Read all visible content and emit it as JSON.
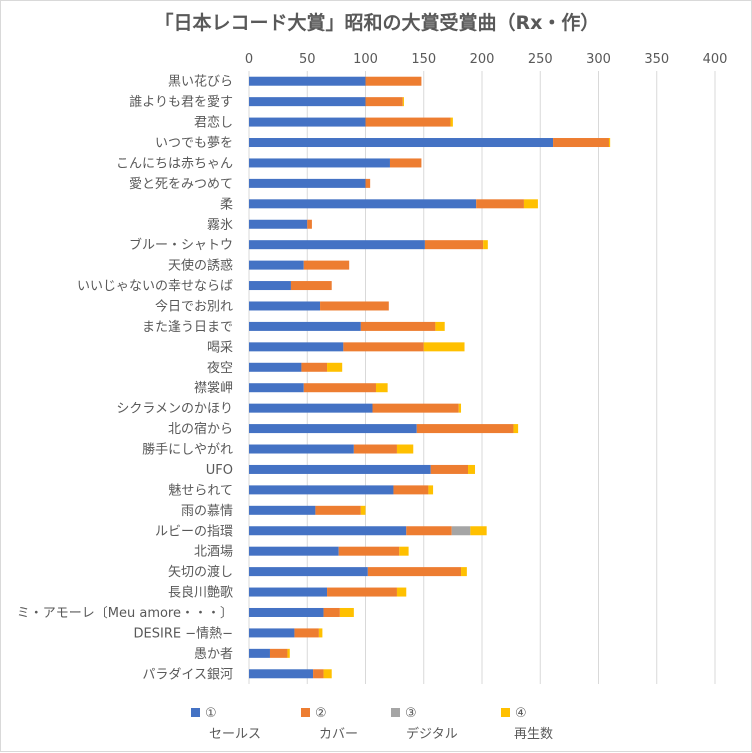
{
  "chart_data": {
    "type": "bar",
    "orientation": "horizontal",
    "stacked": true,
    "title": "「日本レコード大賞」昭和の大賞受賞曲（Rx・作）",
    "xlabel": "",
    "ylabel": "",
    "xlim": [
      0,
      400
    ],
    "xticks": [
      0,
      50,
      100,
      150,
      200,
      250,
      300,
      350,
      400
    ],
    "grid": true,
    "legend_position": "bottom",
    "categories": [
      "黒い花びら",
      "誰よりも君を愛す",
      "君恋し",
      "いつでも夢を",
      "こんにちは赤ちゃん",
      "愛と死をみつめて",
      "柔",
      "霧氷",
      "ブルー・シャトウ",
      "天使の誘惑",
      "いいじゃないの幸せならば",
      "今日でお別れ",
      "また逢う日まで",
      "喝采",
      "夜空",
      "襟裳岬",
      "シクラメンのかほり",
      "北の宿から",
      "勝手にしやがれ",
      "UFO",
      "魅せられて",
      "雨の慕情",
      "ルビーの指環",
      "北酒場",
      "矢切の渡し",
      "長良川艶歌",
      "ミ・アモーレ〔Meu amore・・・〕",
      "DESIRE −情熱−",
      "愚か者",
      "パラダイス銀河"
    ],
    "series": [
      {
        "name": "①",
        "color": "#4472c4",
        "values": [
          100,
          100,
          100,
          261,
          121,
          100,
          195,
          50,
          151,
          47,
          36,
          61,
          96,
          81,
          45,
          47,
          106,
          144,
          90,
          156,
          124,
          57,
          135,
          77,
          102,
          67,
          64,
          39,
          18,
          55
        ]
      },
      {
        "name": "②",
        "color": "#ed7d31",
        "values": [
          48,
          32,
          73,
          48,
          27,
          4,
          41,
          4,
          50,
          39,
          35,
          59,
          64,
          69,
          22,
          62,
          74,
          83,
          37,
          32,
          30,
          39,
          39,
          52,
          80,
          60,
          14,
          21,
          15,
          9
        ]
      },
      {
        "name": "③",
        "color": "#a5a5a5",
        "values": [
          0,
          0,
          0,
          0,
          0,
          0,
          0,
          0,
          0,
          0,
          0,
          0,
          0,
          0,
          0,
          0,
          0,
          0,
          0,
          0,
          0,
          0,
          16,
          0,
          0,
          0,
          0,
          0,
          0,
          0
        ]
      },
      {
        "name": "④",
        "color": "#ffc000",
        "values": [
          0,
          1,
          2,
          1,
          0,
          0,
          12,
          0,
          4,
          0,
          0,
          0,
          8,
          35,
          13,
          10,
          2,
          4,
          14,
          6,
          4,
          4,
          14,
          8,
          5,
          8,
          12,
          3,
          2,
          7
        ]
      }
    ],
    "legend_captions": [
      "セールス",
      "カバー",
      "デジタル",
      "再生数"
    ]
  }
}
